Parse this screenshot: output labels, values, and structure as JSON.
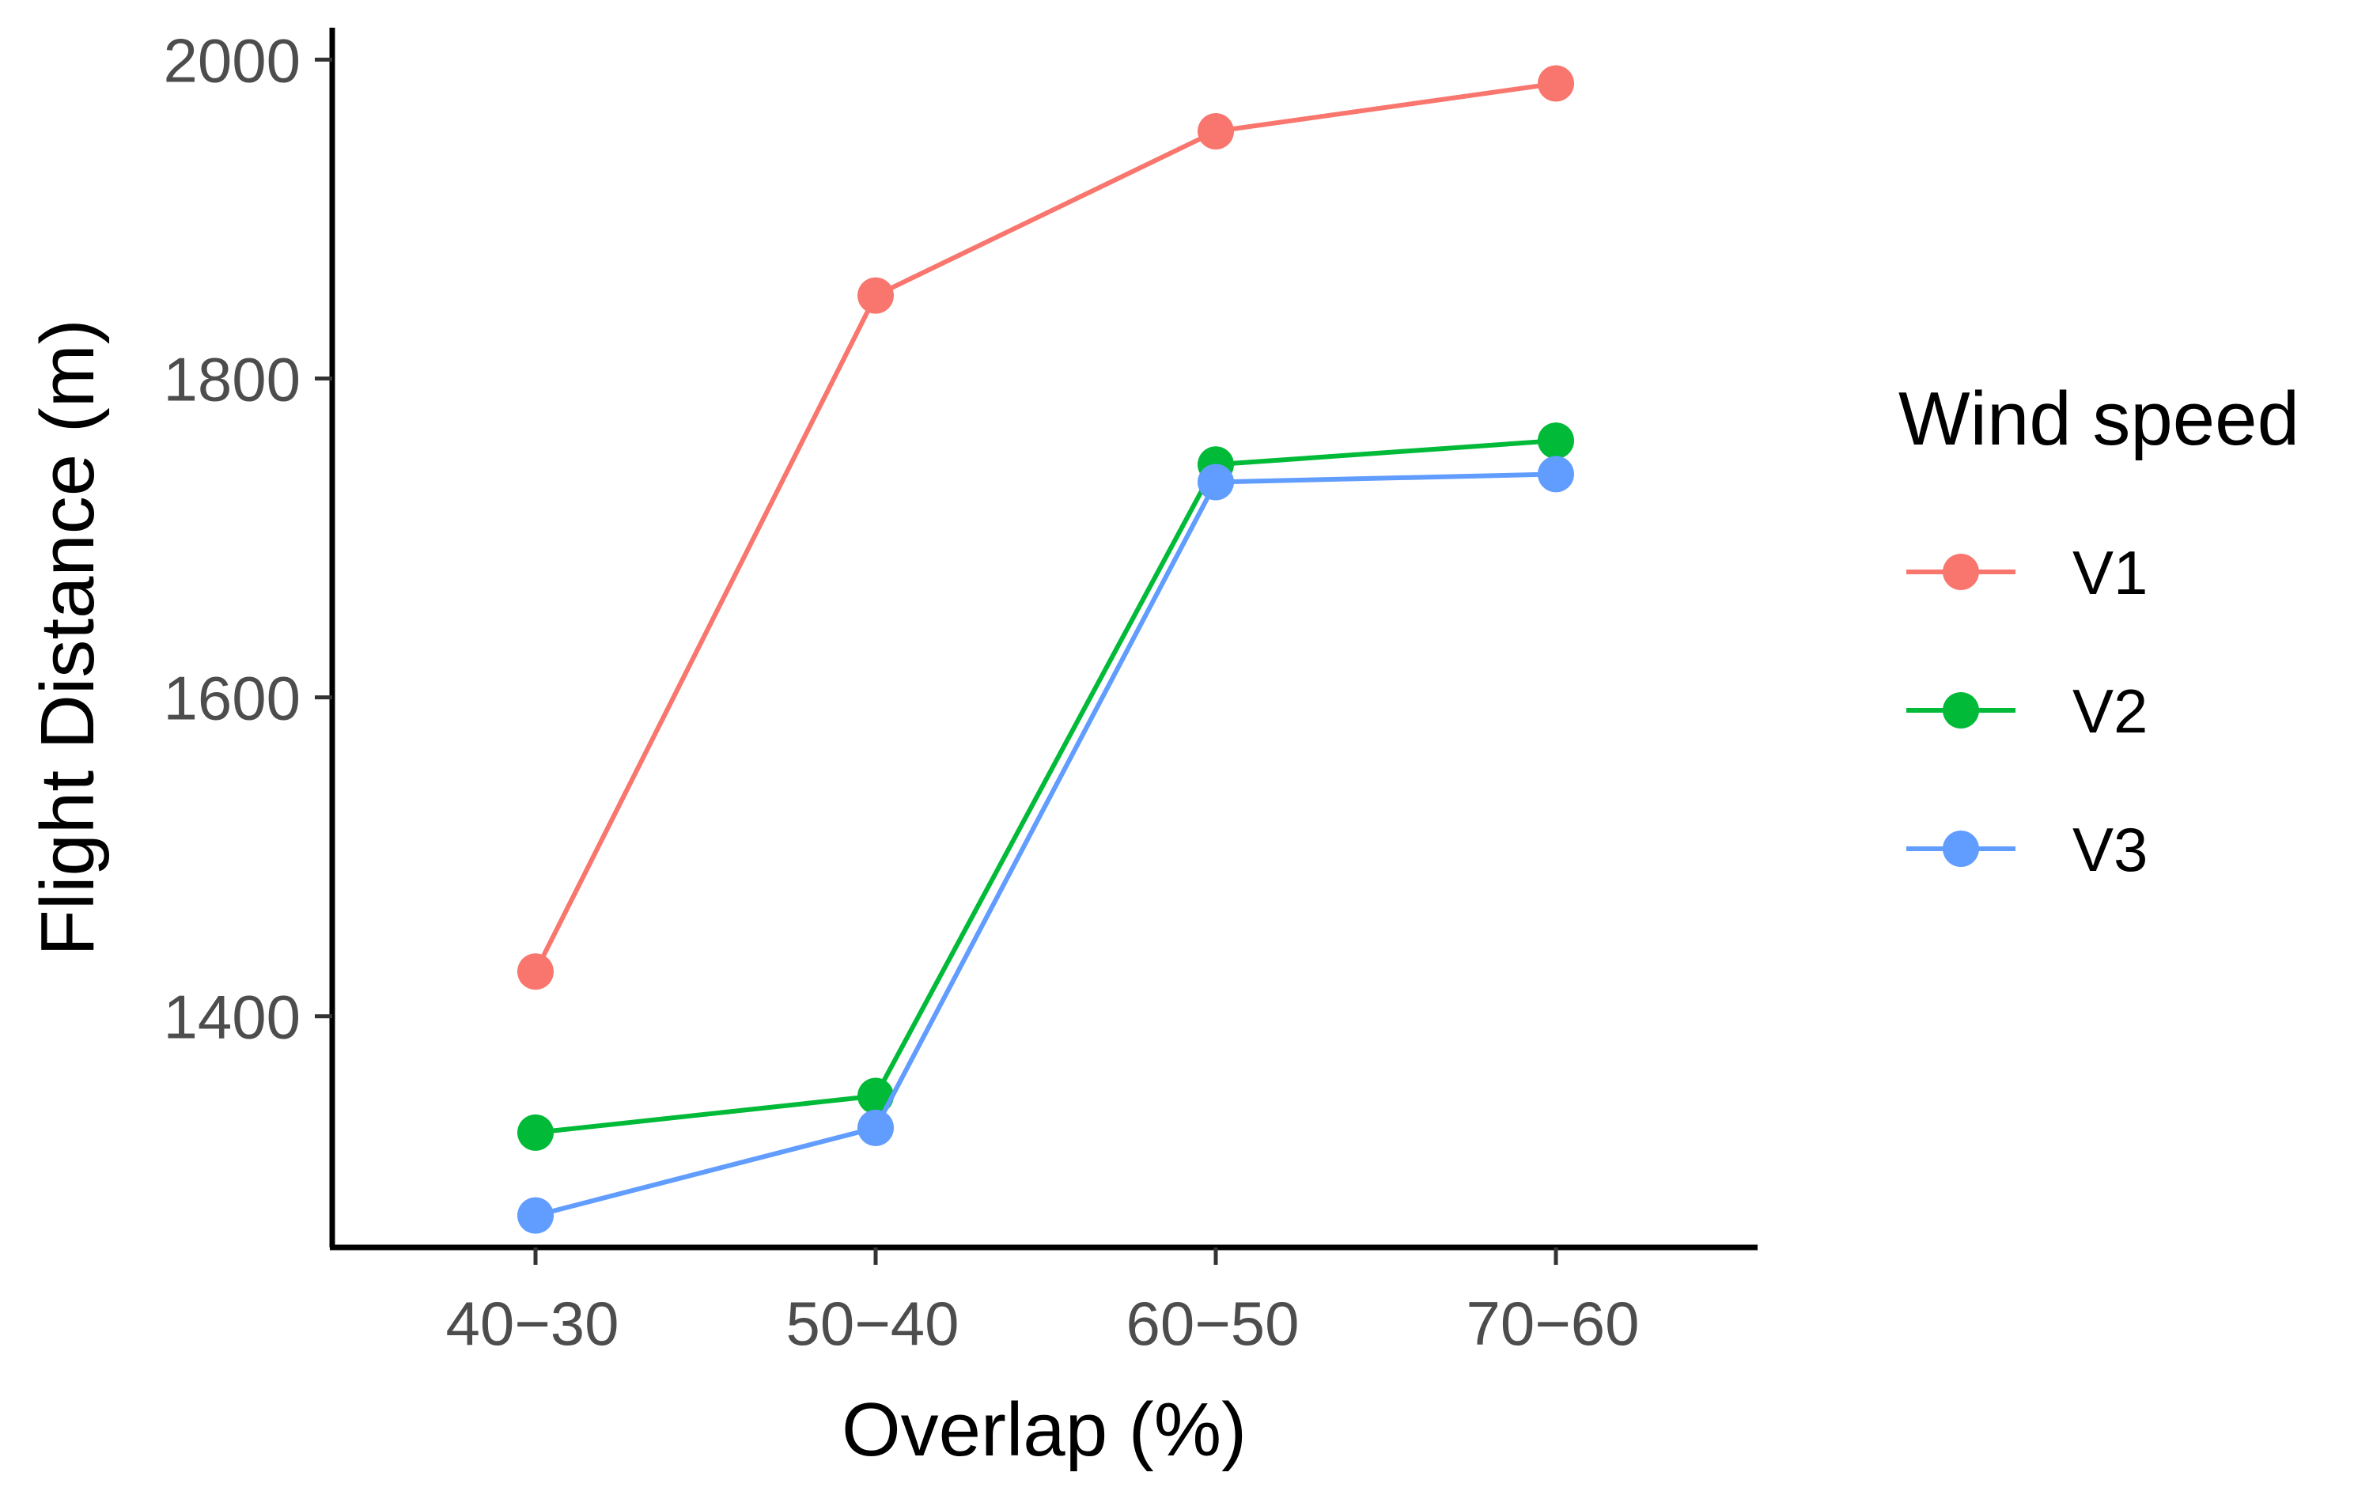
{
  "chart_data": {
    "type": "line",
    "title": "",
    "xlabel": "Overlap (%)",
    "ylabel": "Flight Distance (m)",
    "categories": [
      "40−30",
      "50−40",
      "60−50",
      "70−60"
    ],
    "ylim": [
      1255,
      2020
    ],
    "yticks": [
      1400,
      1600,
      1800,
      2000
    ],
    "grid": false,
    "legend": {
      "title": "Wind speed",
      "position": "right"
    },
    "series": [
      {
        "name": "V1",
        "color": "#F8766D",
        "values": [
          1428,
          1852,
          1955,
          1985
        ]
      },
      {
        "name": "V2",
        "color": "#00BA38",
        "values": [
          1327,
          1350,
          1746,
          1761
        ]
      },
      {
        "name": "V3",
        "color": "#619CFF",
        "values": [
          1275,
          1330,
          1735,
          1740
        ]
      }
    ]
  }
}
